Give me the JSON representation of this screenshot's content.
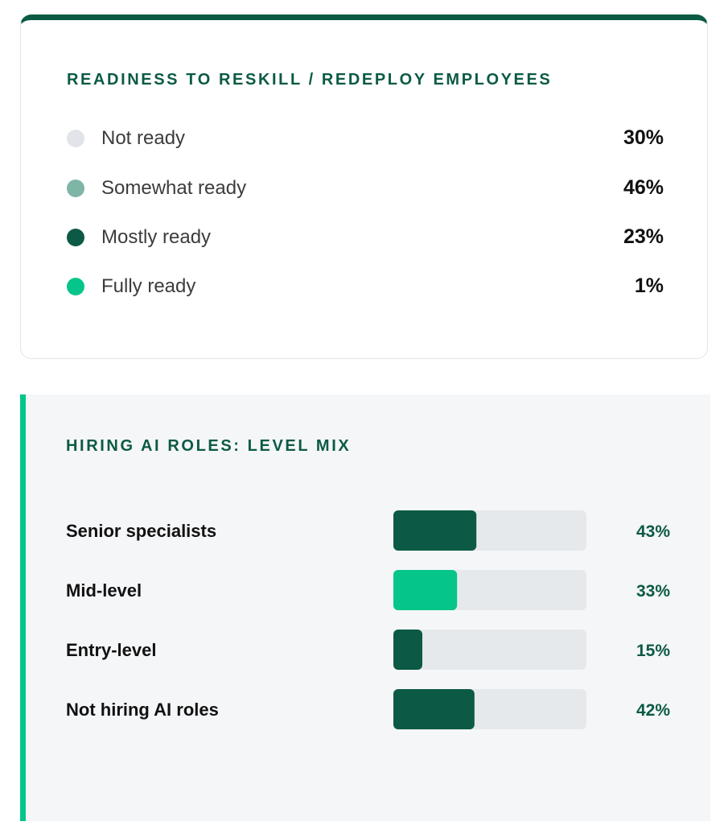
{
  "readiness": {
    "title": "READINESS TO RESKILL / REDEPLOY EMPLOYEES",
    "items": [
      {
        "label": "Not ready",
        "value": "30%",
        "color": "#e1e4e8"
      },
      {
        "label": "Somewhat ready",
        "value": "46%",
        "color": "#7fb5a6"
      },
      {
        "label": "Mostly ready",
        "value": "23%",
        "color": "#0c5a45"
      },
      {
        "label": "Fully ready",
        "value": "1%",
        "color": "#05c58a"
      }
    ]
  },
  "hiring": {
    "title": "HIRING AI ROLES: LEVEL MIX"
  },
  "chart_data": [
    {
      "type": "pie",
      "title": "READINESS TO RESKILL / REDEPLOY EMPLOYEES",
      "categories": [
        "Not ready",
        "Somewhat ready",
        "Mostly ready",
        "Fully ready"
      ],
      "values": [
        30,
        46,
        23,
        1
      ],
      "colors": [
        "#e1e4e8",
        "#7fb5a6",
        "#0c5a45",
        "#05c58a"
      ],
      "unit": "%"
    },
    {
      "type": "bar",
      "orientation": "horizontal",
      "title": "HIRING AI ROLES: LEVEL MIX",
      "categories": [
        "Senior specialists",
        "Mid-level",
        "Entry-level",
        "Not hiring AI roles"
      ],
      "values": [
        43,
        33,
        15,
        42
      ],
      "value_labels": [
        "43%",
        "33%",
        "15%",
        "42%"
      ],
      "colors": [
        "#0c5a45",
        "#05c58a",
        "#0c5a45",
        "#0c5a45"
      ],
      "track_color": "#e6e9eb",
      "xlim": [
        0,
        100
      ],
      "grid": false
    }
  ]
}
